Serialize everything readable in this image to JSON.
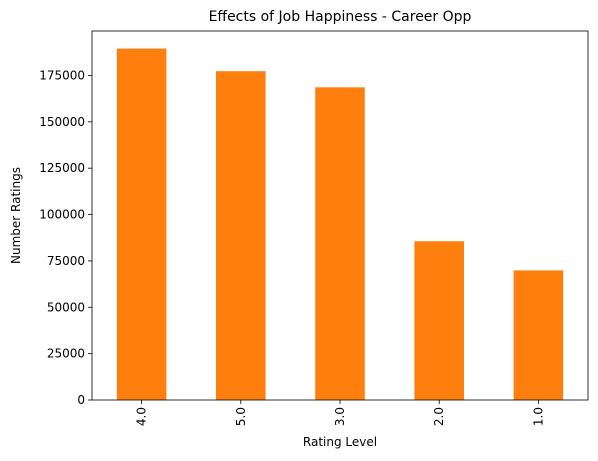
{
  "chart_data": {
    "type": "bar",
    "title": "Effects of Job Happiness - Career Opp",
    "xlabel": "Rating Level",
    "ylabel": "Number Ratings",
    "categories": [
      "4.0",
      "5.0",
      "3.0",
      "2.0",
      "1.0"
    ],
    "values": [
      189500,
      177300,
      168600,
      85600,
      69900
    ],
    "ylim": [
      0,
      198975
    ],
    "yticks": [
      0,
      25000,
      50000,
      75000,
      100000,
      125000,
      150000,
      175000
    ],
    "ytick_labels": [
      "0",
      "25000",
      "50000",
      "75000",
      "100000",
      "125000",
      "150000",
      "175000"
    ],
    "bar_color": "#ff7f0e",
    "grid": false,
    "legend": false
  }
}
